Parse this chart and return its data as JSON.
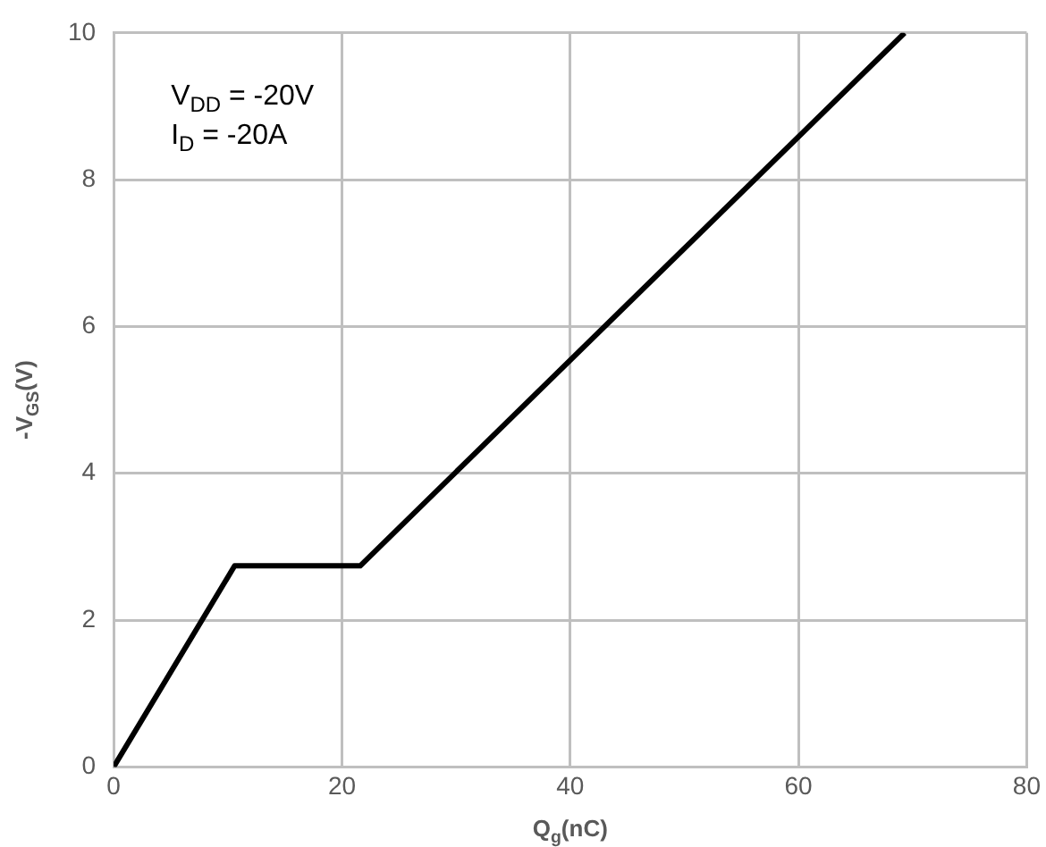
{
  "chart_data": {
    "type": "line",
    "xlabel": "Q$_{g}$(nC)",
    "ylabel": "-V$_{GS}$(V)",
    "x": [
      0,
      10.6,
      21.6,
      69.3
    ],
    "series": [
      {
        "color": "#000000",
        "values": [
          0,
          2.74,
          2.74,
          10
        ]
      }
    ],
    "xlim": [
      0,
      80
    ],
    "xticks": [
      0,
      20,
      40,
      60,
      80
    ],
    "ylim": [
      0,
      10
    ],
    "yticks": [
      0,
      2,
      4,
      6,
      8,
      10
    ],
    "grid": true,
    "legend": false,
    "marker": "none",
    "line_style": "solid",
    "annotations": [
      "V$_{DD}$ = -20V",
      "I$_{D}$ = -20A"
    ]
  }
}
